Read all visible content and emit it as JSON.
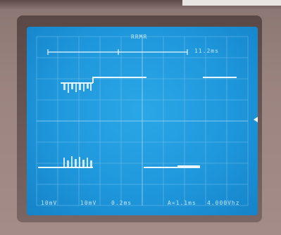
{
  "screen": {
    "header_label": "RRMR",
    "time_span_label": "11.2ms",
    "bottom_readouts": [
      "10mV",
      "10mV",
      "0.2ms",
      "A=1.1ms",
      "4.000Vhz"
    ],
    "graticule": {
      "divisions_x": 10,
      "divisions_y": 8
    }
  },
  "colors": {
    "screen": "#1f97dc",
    "trace": "#eaf6ff",
    "grid": "#8cc8ee",
    "bezel": "#9c8581"
  }
}
